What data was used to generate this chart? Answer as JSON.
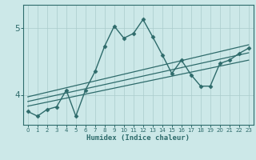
{
  "title": "",
  "xlabel": "Humidex (Indice chaleur)",
  "ylabel": "",
  "bg_color": "#cce8e8",
  "line_color": "#2e6b6b",
  "grid_color": "#aacccc",
  "xlim": [
    -0.5,
    23.5
  ],
  "ylim": [
    3.55,
    5.35
  ],
  "yticks": [
    4,
    5
  ],
  "xticks": [
    0,
    1,
    2,
    3,
    4,
    5,
    6,
    7,
    8,
    9,
    10,
    11,
    12,
    13,
    14,
    15,
    16,
    17,
    18,
    19,
    20,
    21,
    22,
    23
  ],
  "series": [
    {
      "x": [
        0,
        1,
        2,
        3,
        4,
        5,
        6,
        7,
        8,
        9,
        10,
        11,
        12,
        13,
        14,
        15,
        16,
        17,
        18,
        19,
        20,
        21,
        22,
        23
      ],
      "y": [
        3.75,
        3.68,
        3.78,
        3.82,
        4.07,
        3.68,
        4.07,
        4.35,
        4.73,
        5.03,
        4.85,
        4.92,
        5.13,
        4.87,
        4.6,
        4.32,
        4.52,
        4.3,
        4.13,
        4.13,
        4.47,
        4.52,
        4.62,
        4.7
      ],
      "marker": "D",
      "markersize": 2.5,
      "linewidth": 1.0
    },
    {
      "x": [
        0,
        23
      ],
      "y": [
        3.97,
        4.75
      ],
      "marker": null,
      "linewidth": 0.9
    },
    {
      "x": [
        0,
        23
      ],
      "y": [
        3.9,
        4.63
      ],
      "marker": null,
      "linewidth": 0.9
    },
    {
      "x": [
        0,
        23
      ],
      "y": [
        3.83,
        4.52
      ],
      "marker": null,
      "linewidth": 0.9
    }
  ]
}
